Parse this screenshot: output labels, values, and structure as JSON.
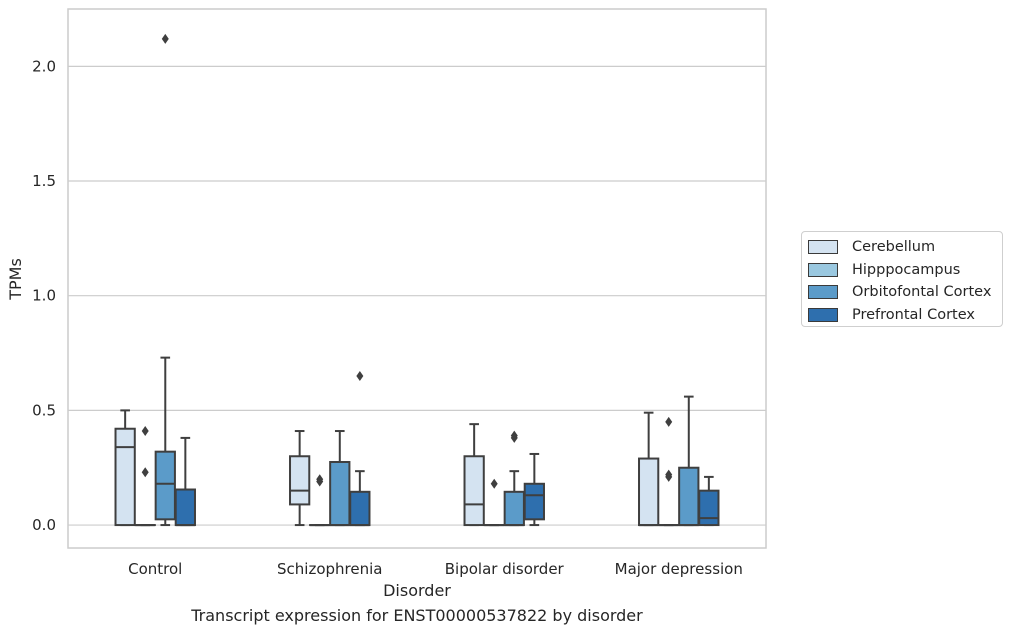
{
  "chart_data": {
    "type": "box",
    "xlabel": "Disorder",
    "ylabel": "TPMs",
    "caption": "Transcript expression for ENST00000537822 by disorder",
    "ylim": [
      -0.1,
      2.25
    ],
    "yticks": [
      "0.0",
      "0.5",
      "1.0",
      "1.5",
      "2.0"
    ],
    "categories": [
      "Control",
      "Schizophrenia",
      "Bipolar disorder",
      "Major depression"
    ],
    "grid": true,
    "legend_position": "right",
    "series": [
      {
        "name": "Cerebellum",
        "color": "#d4e3f1",
        "boxes": [
          {
            "whislo": 0.0,
            "q1": 0.0,
            "med": 0.34,
            "q3": 0.42,
            "whishi": 0.5,
            "fliers": []
          },
          {
            "whislo": 0.0,
            "q1": 0.09,
            "med": 0.15,
            "q3": 0.3,
            "whishi": 0.41,
            "fliers": []
          },
          {
            "whislo": 0.0,
            "q1": 0.0,
            "med": 0.09,
            "q3": 0.3,
            "whishi": 0.44,
            "fliers": []
          },
          {
            "whislo": 0.0,
            "q1": 0.0,
            "med": 0.0,
            "q3": 0.29,
            "whishi": 0.49,
            "fliers": []
          }
        ]
      },
      {
        "name": "Hipppocampus",
        "color": "#9ac8e0",
        "boxes": [
          {
            "whislo": 0.0,
            "q1": 0.0,
            "med": 0.0,
            "q3": 0.0,
            "whishi": 0.0,
            "fliers": [
              0.41,
              0.23
            ]
          },
          {
            "whislo": 0.0,
            "q1": 0.0,
            "med": 0.0,
            "q3": 0.0,
            "whishi": 0.0,
            "fliers": [
              0.2,
              0.19
            ]
          },
          {
            "whislo": 0.0,
            "q1": 0.0,
            "med": 0.0,
            "q3": 0.0,
            "whishi": 0.0,
            "fliers": [
              0.18
            ]
          },
          {
            "whislo": 0.0,
            "q1": 0.0,
            "med": 0.0,
            "q3": 0.0,
            "whishi": 0.0,
            "fliers": [
              0.45,
              0.22,
              0.21
            ]
          }
        ]
      },
      {
        "name": "Orbitofontal Cortex",
        "color": "#5b9bc9",
        "boxes": [
          {
            "whislo": 0.0,
            "q1": 0.025,
            "med": 0.18,
            "q3": 0.32,
            "whishi": 0.73,
            "fliers": [
              2.12
            ]
          },
          {
            "whislo": 0.0,
            "q1": 0.0,
            "med": 0.0,
            "q3": 0.275,
            "whishi": 0.41,
            "fliers": []
          },
          {
            "whislo": 0.0,
            "q1": 0.0,
            "med": 0.0,
            "q3": 0.145,
            "whishi": 0.235,
            "fliers": [
              0.39,
              0.38
            ]
          },
          {
            "whislo": 0.0,
            "q1": 0.0,
            "med": 0.0,
            "q3": 0.25,
            "whishi": 0.56,
            "fliers": []
          }
        ]
      },
      {
        "name": "Prefrontal Cortex",
        "color": "#2e6fae",
        "boxes": [
          {
            "whislo": 0.0,
            "q1": 0.0,
            "med": 0.0,
            "q3": 0.155,
            "whishi": 0.38,
            "fliers": []
          },
          {
            "whislo": 0.0,
            "q1": 0.0,
            "med": 0.0,
            "q3": 0.145,
            "whishi": 0.235,
            "fliers": [
              0.65
            ]
          },
          {
            "whislo": 0.0,
            "q1": 0.025,
            "med": 0.13,
            "q3": 0.18,
            "whishi": 0.31,
            "fliers": []
          },
          {
            "whislo": 0.0,
            "q1": 0.0,
            "med": 0.03,
            "q3": 0.15,
            "whishi": 0.21,
            "fliers": []
          }
        ]
      }
    ]
  }
}
